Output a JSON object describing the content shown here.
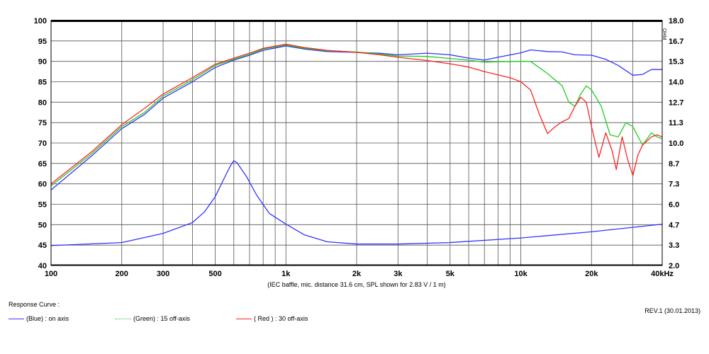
{
  "chart_data": {
    "type": "line",
    "caption": "(IEC baffle, mic. distance 31.6 cm, SPL shown for 2.83 V / 1 m)",
    "x_scale": "log",
    "xlim": [
      100,
      40000
    ],
    "ylim_left": [
      40,
      100
    ],
    "ylim_right": [
      2.0,
      18.0
    ],
    "grid": true,
    "x_ticks": [
      {
        "v": 100,
        "label": "100"
      },
      {
        "v": 200,
        "label": "200"
      },
      {
        "v": 300,
        "label": "300"
      },
      {
        "v": 500,
        "label": "500"
      },
      {
        "v": 1000,
        "label": "1k"
      },
      {
        "v": 2000,
        "label": "2k"
      },
      {
        "v": 3000,
        "label": "3k"
      },
      {
        "v": 5000,
        "label": "5k"
      },
      {
        "v": 10000,
        "label": "10k"
      },
      {
        "v": 20000,
        "label": "20k"
      },
      {
        "v": 40000,
        "label": "40kHz"
      }
    ],
    "y_ticks_left": [
      "40",
      "45",
      "50",
      "55",
      "60",
      "65",
      "70",
      "75",
      "80",
      "85",
      "90",
      "95",
      "100"
    ],
    "y_ticks_right": [
      "2.0",
      "3.3",
      "4.7",
      "6.0",
      "7.3",
      "8.7",
      "10.0",
      "11.3",
      "12.7",
      "14.0",
      "15.3",
      "16.7",
      "18.0"
    ],
    "right_axis_unit": "OHM",
    "series": [
      {
        "name": "(Blue) : on axis",
        "color": "#3333ff",
        "points": [
          [
            100,
            58.5
          ],
          [
            150,
            67
          ],
          [
            200,
            73.5
          ],
          [
            250,
            77
          ],
          [
            300,
            81
          ],
          [
            400,
            85
          ],
          [
            500,
            88.5
          ],
          [
            600,
            90.3
          ],
          [
            700,
            91.5
          ],
          [
            800,
            92.7
          ],
          [
            1000,
            93.8
          ],
          [
            1200,
            93
          ],
          [
            1500,
            92.4
          ],
          [
            2000,
            92.2
          ],
          [
            2500,
            92
          ],
          [
            3000,
            91.6
          ],
          [
            4000,
            92
          ],
          [
            5000,
            91.6
          ],
          [
            6000,
            90.8
          ],
          [
            7000,
            90.3
          ],
          [
            8000,
            91
          ],
          [
            10000,
            92.1
          ],
          [
            11000,
            92.8
          ],
          [
            13000,
            92.4
          ],
          [
            15000,
            92.3
          ],
          [
            17000,
            91.6
          ],
          [
            20000,
            91.5
          ],
          [
            23000,
            90.5
          ],
          [
            26000,
            89
          ],
          [
            30000,
            86.6
          ],
          [
            33000,
            86.8
          ],
          [
            36000,
            88
          ],
          [
            40000,
            88
          ]
        ]
      },
      {
        "name": "(Green) : 15 off-axis",
        "color": "#22cc22",
        "points": [
          [
            100,
            59.5
          ],
          [
            150,
            67.5
          ],
          [
            200,
            74
          ],
          [
            250,
            77.5
          ],
          [
            300,
            81.5
          ],
          [
            400,
            85.5
          ],
          [
            500,
            89
          ],
          [
            600,
            90.5
          ],
          [
            700,
            91.7
          ],
          [
            800,
            93
          ],
          [
            1000,
            94
          ],
          [
            1200,
            93.2
          ],
          [
            1500,
            92.6
          ],
          [
            2000,
            92.3
          ],
          [
            2500,
            91.8
          ],
          [
            3000,
            91.3
          ],
          [
            4000,
            91.2
          ],
          [
            5000,
            90.7
          ],
          [
            6000,
            90.3
          ],
          [
            7000,
            89.8
          ],
          [
            8000,
            89.9
          ],
          [
            10000,
            90
          ],
          [
            11000,
            90
          ],
          [
            13000,
            87
          ],
          [
            15000,
            84
          ],
          [
            16000,
            80
          ],
          [
            17000,
            79
          ],
          [
            18000,
            82
          ],
          [
            19000,
            84
          ],
          [
            20000,
            83
          ],
          [
            22000,
            79
          ],
          [
            24000,
            72
          ],
          [
            26000,
            71.5
          ],
          [
            28000,
            75
          ],
          [
            30000,
            74
          ],
          [
            33000,
            69.5
          ],
          [
            36000,
            72.5
          ],
          [
            38000,
            71.5
          ],
          [
            40000,
            71
          ]
        ]
      },
      {
        "name": "( Red ) : 30 off-axis",
        "color": "#ff2222",
        "points": [
          [
            100,
            60
          ],
          [
            150,
            68
          ],
          [
            200,
            74.5
          ],
          [
            250,
            78.5
          ],
          [
            300,
            82
          ],
          [
            400,
            86
          ],
          [
            500,
            89.3
          ],
          [
            600,
            90.8
          ],
          [
            700,
            92
          ],
          [
            800,
            93.2
          ],
          [
            1000,
            94.2
          ],
          [
            1200,
            93.4
          ],
          [
            1500,
            92.7
          ],
          [
            2000,
            92.2
          ],
          [
            2500,
            91.6
          ],
          [
            3000,
            91
          ],
          [
            4000,
            90.2
          ],
          [
            5000,
            89.4
          ],
          [
            6000,
            88.6
          ],
          [
            7000,
            87.5
          ],
          [
            8000,
            86.7
          ],
          [
            9000,
            86
          ],
          [
            10000,
            85
          ],
          [
            11000,
            83
          ],
          [
            12000,
            77
          ],
          [
            13000,
            72.3
          ],
          [
            14000,
            74
          ],
          [
            15000,
            75.2
          ],
          [
            16000,
            76
          ],
          [
            17000,
            79
          ],
          [
            18000,
            81.2
          ],
          [
            19000,
            80
          ],
          [
            20000,
            74
          ],
          [
            21500,
            66.5
          ],
          [
            23000,
            72.5
          ],
          [
            24500,
            68
          ],
          [
            25500,
            63.5
          ],
          [
            27000,
            71.5
          ],
          [
            28500,
            66
          ],
          [
            30000,
            62
          ],
          [
            31500,
            67
          ],
          [
            33000,
            69.5
          ],
          [
            36000,
            71.5
          ],
          [
            38000,
            72
          ],
          [
            40000,
            71.5
          ]
        ]
      },
      {
        "name": "impedance",
        "color": "#3333ff",
        "axis": "right",
        "points": [
          [
            100,
            3.3
          ],
          [
            200,
            3.5
          ],
          [
            300,
            4.1
          ],
          [
            400,
            4.8
          ],
          [
            450,
            5.5
          ],
          [
            500,
            6.5
          ],
          [
            550,
            7.8
          ],
          [
            580,
            8.5
          ],
          [
            600,
            8.85
          ],
          [
            620,
            8.7
          ],
          [
            680,
            7.8
          ],
          [
            750,
            6.6
          ],
          [
            850,
            5.4
          ],
          [
            1000,
            4.7
          ],
          [
            1200,
            4.0
          ],
          [
            1500,
            3.55
          ],
          [
            2000,
            3.4
          ],
          [
            3000,
            3.4
          ],
          [
            5000,
            3.5
          ],
          [
            10000,
            3.8
          ],
          [
            20000,
            4.2
          ],
          [
            40000,
            4.7
          ]
        ]
      }
    ]
  },
  "legend": {
    "title": "Response Curve :",
    "items": [
      {
        "label": "(Blue)  : on axis",
        "color": "#3333ff",
        "style": "solid"
      },
      {
        "label": "(Green) : 15 off-axis",
        "color": "#22cc22",
        "style": "dotted"
      },
      {
        "label": "( Red )  : 30 off-axis",
        "color": "#ff2222",
        "style": "solid"
      }
    ]
  },
  "revision": "REV.1 (30.01.2013)"
}
